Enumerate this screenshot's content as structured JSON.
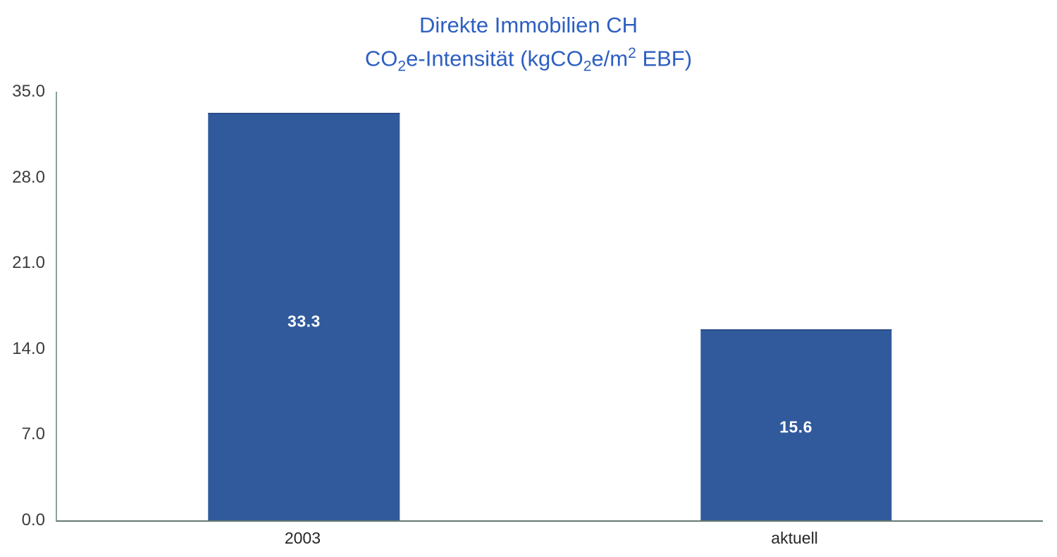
{
  "chart_data": {
    "type": "bar",
    "title": "Direkte Immobilien CH",
    "subtitle": "CO₂e-Intensität (kgCO₂e/m² EBF)",
    "subtitle_parts": {
      "p1": "CO",
      "p2": "2",
      "p3": "e-Intensität (kgCO",
      "p4": "2",
      "p5": "e/m",
      "p6": "2",
      "p7": " EBF)"
    },
    "categories": [
      "2003",
      "aktuell"
    ],
    "values": [
      33.3,
      15.6
    ],
    "value_labels": [
      "33.3",
      "15.6"
    ],
    "ylim": [
      0,
      35
    ],
    "yticks": [
      "35.0",
      "28.0",
      "21.0",
      "14.0",
      "7.0",
      "0.0"
    ],
    "ytick_values": [
      35,
      28,
      21,
      14,
      7,
      0
    ],
    "grid": false,
    "legend": "none",
    "bar_centers_pct": [
      25.05,
      74.95
    ],
    "colors": {
      "bar_fill": "#305a9c",
      "bar_top_edge": "#2b4d87",
      "title_text": "#2d5fc1",
      "axis_line": "#6f837c",
      "tick_text": "#3c3c3c",
      "value_label_text": "#ffffff",
      "background": "#ffffff"
    }
  }
}
